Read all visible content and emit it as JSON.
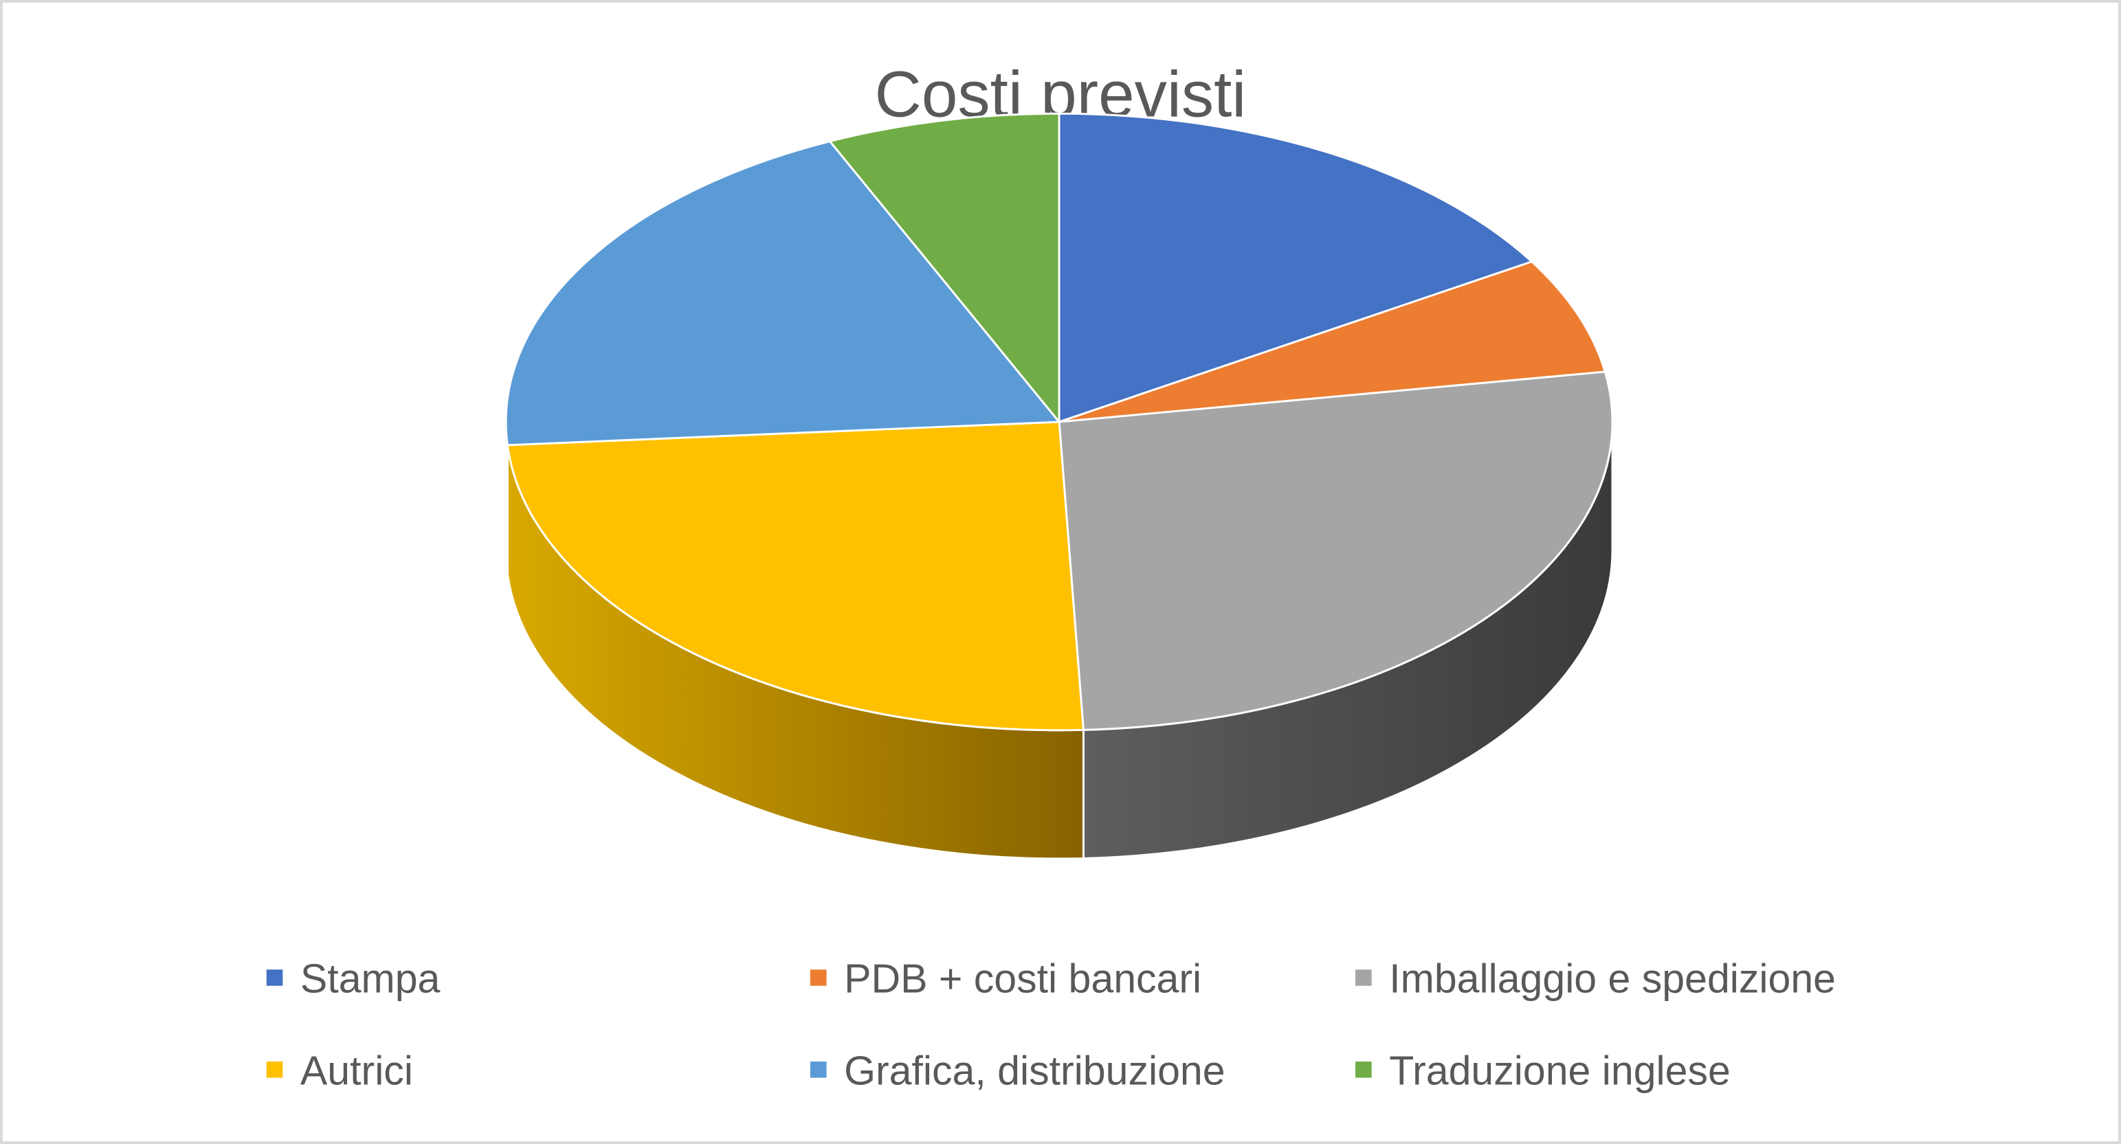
{
  "chart_data": {
    "type": "pie",
    "style": "3d",
    "title": "Costi previsti",
    "legend_position": "bottom",
    "slices": [
      {
        "label": "Stampa",
        "value": 16.3,
        "color": "#4472C4"
      },
      {
        "label": "PDB + costi bancari",
        "value": 6.1,
        "color": "#ED7D31"
      },
      {
        "label": "Imballaggio e spedizione",
        "value": 26.9,
        "color": "#A5A5A5"
      },
      {
        "label": "Autrici",
        "value": 24.5,
        "color": "#FFC000"
      },
      {
        "label": "Grafica, distribuzione",
        "value": 19.4,
        "color": "#5B9BD5"
      },
      {
        "label": "Traduzione inglese",
        "value": 6.8,
        "color": "#70AD47"
      }
    ]
  }
}
